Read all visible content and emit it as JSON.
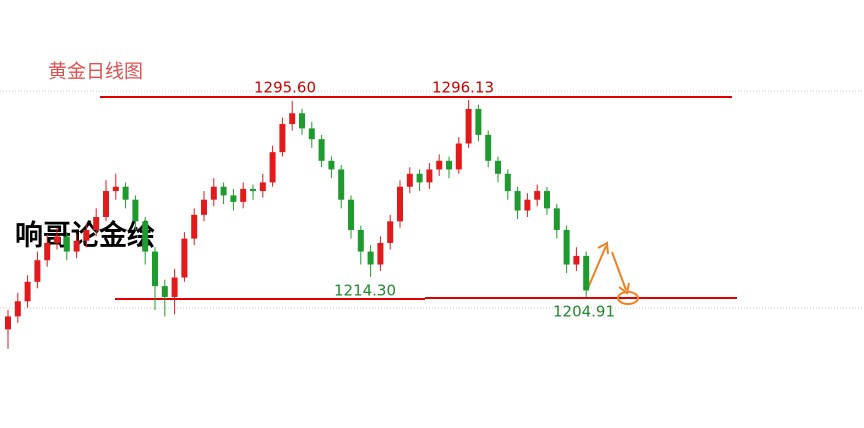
{
  "chart_data": {
    "type": "candlestick",
    "title": "黄金日线图",
    "watermark": "响哥论金绘",
    "annotations": [
      "1295.60",
      "1296.13",
      "1214.30",
      "1204.91"
    ],
    "up_color": "#e31a1c",
    "down_color": "#1f9a2e",
    "ylim": [
      1160,
      1340
    ],
    "open": [
      1190,
      1196,
      1203,
      1212,
      1222,
      1230,
      1233,
      1226,
      1231,
      1236,
      1242,
      1254,
      1256,
      1250,
      1240,
      1226,
      1210,
      1205,
      1214,
      1232,
      1243,
      1250,
      1256,
      1252,
      1249,
      1255,
      1254,
      1258,
      1272,
      1285,
      1290,
      1283,
      1278,
      1268,
      1264,
      1250,
      1236,
      1226,
      1220,
      1230,
      1240,
      1256,
      1262,
      1258,
      1264,
      1268,
      1264,
      1276,
      1292,
      1280,
      1268,
      1262,
      1254,
      1245,
      1250,
      1254,
      1246,
      1236,
      1220,
      1224
    ],
    "high": [
      1199,
      1207,
      1215,
      1226,
      1234,
      1237,
      1235,
      1234,
      1239,
      1246,
      1259,
      1262,
      1258,
      1252,
      1242,
      1228,
      1213,
      1218,
      1235,
      1246,
      1254,
      1260,
      1258,
      1255,
      1258,
      1257,
      1262,
      1275,
      1288,
      1295.6,
      1292,
      1286,
      1280,
      1270,
      1266,
      1252,
      1238,
      1229,
      1233,
      1243,
      1259,
      1265,
      1264,
      1267,
      1271,
      1270,
      1279,
      1296.13,
      1294,
      1282,
      1270,
      1264,
      1256,
      1253,
      1257,
      1256,
      1248,
      1238,
      1228,
      1226
    ],
    "low": [
      1181,
      1193,
      1200,
      1209,
      1219,
      1227,
      1222,
      1223,
      1228,
      1233,
      1240,
      1250,
      1246,
      1236,
      1220,
      1199,
      1196,
      1197,
      1212,
      1229,
      1240,
      1247,
      1248,
      1245,
      1246,
      1250,
      1251,
      1256,
      1270,
      1282,
      1280,
      1274,
      1265,
      1260,
      1246,
      1232,
      1220,
      1214.3,
      1217,
      1227,
      1237,
      1253,
      1254,
      1255,
      1261,
      1260,
      1262,
      1274,
      1277,
      1265,
      1258,
      1250,
      1241,
      1242,
      1247,
      1243,
      1232,
      1216,
      1217,
      1204.91
    ],
    "close": [
      1196,
      1203,
      1212,
      1222,
      1230,
      1233,
      1226,
      1231,
      1236,
      1242,
      1254,
      1256,
      1250,
      1240,
      1226,
      1210,
      1205,
      1214,
      1232,
      1243,
      1250,
      1256,
      1252,
      1249,
      1255,
      1254,
      1258,
      1272,
      1285,
      1290,
      1283,
      1278,
      1268,
      1264,
      1250,
      1236,
      1226,
      1220,
      1230,
      1240,
      1256,
      1262,
      1258,
      1264,
      1268,
      1264,
      1276,
      1292,
      1280,
      1268,
      1262,
      1254,
      1245,
      1250,
      1254,
      1246,
      1236,
      1220,
      1224,
      1208
    ]
  }
}
